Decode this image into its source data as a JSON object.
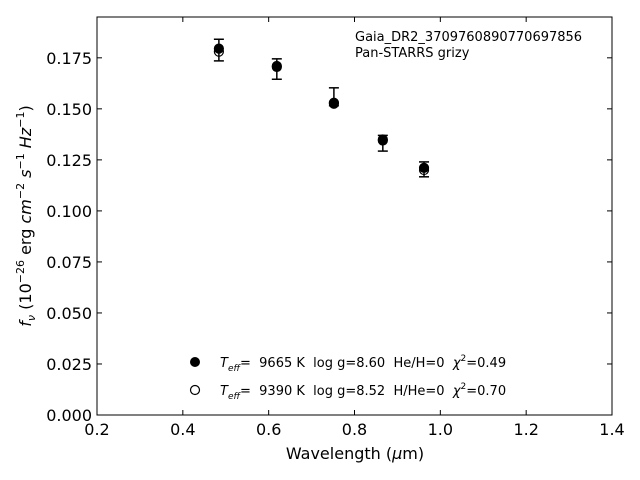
{
  "chart_data": {
    "type": "scatter",
    "xlabel_main": "Wavelength (",
    "xlabel_sym": "μ",
    "xlabel_end": "m)",
    "ylabel_f": "f",
    "ylabel_nu": "ν",
    "ylabel_open": " (10",
    "ylabel_exp1": "−26",
    "ylabel_erg": " erg ",
    "ylabel_cm": "cm",
    "ylabel_exp2": "−2",
    "ylabel_s": " s",
    "ylabel_exp3": "−1",
    "ylabel_hz": " Hz",
    "ylabel_exp4": "−1",
    "ylabel_close": ")",
    "xlim": [
      0.2,
      1.4
    ],
    "ylim": [
      0.0,
      0.195
    ],
    "xticks": [
      "0.2",
      "0.4",
      "0.6",
      "0.8",
      "1.0",
      "1.2",
      "1.4"
    ],
    "yticks": [
      "0.000",
      "0.025",
      "0.050",
      "0.075",
      "0.100",
      "0.125",
      "0.150",
      "0.175"
    ],
    "annotation_line1": "Gaia_DR2_3709760890770697856",
    "annotation_line2": "Pan-STARRS grizy",
    "observed": {
      "x": [
        0.484,
        0.619,
        0.752,
        0.866,
        0.962
      ],
      "y": [
        0.1788,
        0.1695,
        0.1555,
        0.1335,
        0.1205
      ],
      "yerr_low": [
        0.0053,
        0.005,
        0.004,
        0.0042,
        0.0038
      ],
      "yerr_high": [
        0.0053,
        0.005,
        0.0048,
        0.0035,
        0.0035
      ]
    },
    "series": [
      {
        "name": "Teff= 9665 K log g=8.60 He/H=0 χ2=0.49",
        "marker": "filled-circle",
        "x": [
          0.484,
          0.619,
          0.752,
          0.866,
          0.962
        ],
        "y": [
          0.1795,
          0.1705,
          0.1525,
          0.1345,
          0.1211
        ]
      },
      {
        "name": "Teff= 9390 K log g=8.52 H/He=0 χ2=0.70",
        "marker": "open-circle",
        "x": [
          0.484,
          0.619,
          0.752,
          0.866,
          0.962
        ],
        "y": [
          0.178,
          0.171,
          0.153,
          0.135,
          0.12
        ]
      }
    ],
    "legend": [
      {
        "T": "T",
        "eff": "eff",
        "val": "=  9665 K  log g=8.60  He/H=0  ",
        "chi": "χ",
        "two": "2",
        "tail": "=0.49"
      },
      {
        "T": "T",
        "eff": "eff",
        "val": "=  9390 K  log g=8.52  H/He=0  ",
        "chi": "χ",
        "two": "2",
        "tail": "=0.70"
      }
    ],
    "legend_placement": "lower-center",
    "grid": false
  }
}
